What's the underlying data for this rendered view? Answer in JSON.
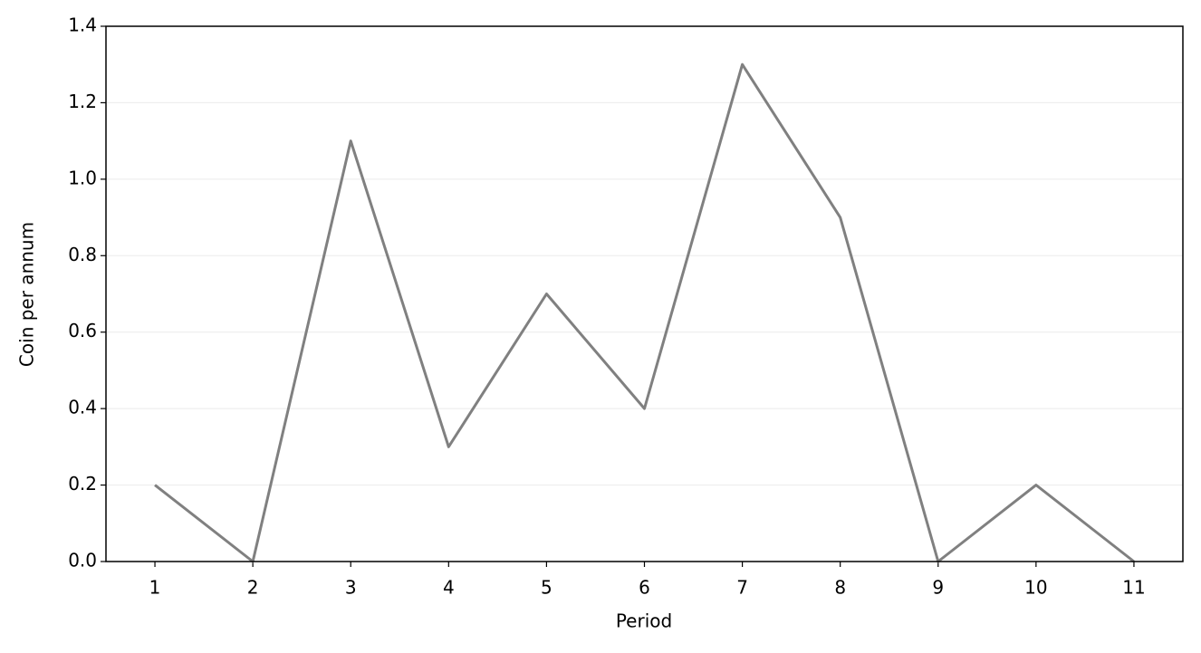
{
  "chart_data": {
    "type": "line",
    "x_label": "Period",
    "y_label": "Coin per annum",
    "x": [
      1,
      2,
      3,
      4,
      5,
      6,
      7,
      8,
      9,
      10,
      11
    ],
    "series": [
      {
        "color": "#808080",
        "values": [
          0.2,
          0,
          1.1,
          0.3,
          0.7,
          0.4,
          1.3,
          0.9,
          0,
          0.2,
          0
        ]
      }
    ],
    "xlim": [
      0.5,
      11.5
    ],
    "xticks": [
      1,
      2,
      3,
      4,
      5,
      6,
      7,
      8,
      9,
      10,
      11
    ],
    "ylim": [
      0,
      1.4
    ],
    "yticks": [
      {
        "value": 0,
        "label": "0.0"
      },
      0.2,
      0.4,
      0.6,
      0.8,
      {
        "value": 1,
        "label": "1.0"
      },
      1.2,
      1.4
    ],
    "grid": "y"
  }
}
